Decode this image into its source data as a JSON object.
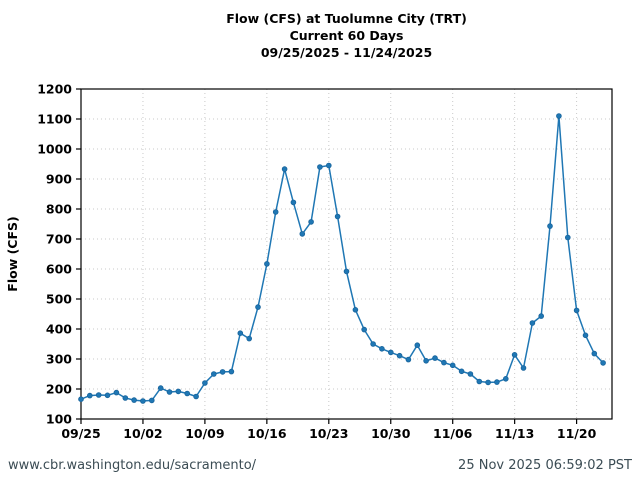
{
  "title": {
    "line1": "Flow (CFS) at Tuolumne City (TRT)",
    "line2": "Current 60 Days",
    "line3": "09/25/2025 - 11/24/2025"
  },
  "footer": {
    "url": "www.cbr.washington.edu/sacramento/",
    "timestamp": "25 Nov 2025 06:59:02 PST"
  },
  "colors": {
    "line": "#1f77b4",
    "marker": "#1f77b4",
    "grid": "#c9c9c9",
    "axis": "#000000",
    "footer_text": "#3b4c54"
  },
  "chart_data": {
    "type": "line",
    "title": "Flow (CFS) at Tuolumne City (TRT)",
    "subtitle": "Current 60 Days",
    "date_range": "09/25/2025 - 11/24/2025",
    "xlabel": "",
    "ylabel": "Flow (CFS)",
    "ylim": [
      100,
      1200
    ],
    "grid": true,
    "legend": "none",
    "yticks": [
      100,
      200,
      300,
      400,
      500,
      600,
      700,
      800,
      900,
      1000,
      1100,
      1200
    ],
    "xtick_days": [
      0,
      7,
      14,
      21,
      28,
      35,
      42,
      49,
      56
    ],
    "xtick_labels": [
      "09/25",
      "10/02",
      "10/09",
      "10/16",
      "10/23",
      "10/30",
      "11/06",
      "11/13",
      "11/20"
    ],
    "x_total_days": 60,
    "x": [
      "09/25",
      "09/26",
      "09/27",
      "09/28",
      "09/29",
      "09/30",
      "10/01",
      "10/02",
      "10/03",
      "10/04",
      "10/05",
      "10/06",
      "10/07",
      "10/08",
      "10/09",
      "10/10",
      "10/11",
      "10/12",
      "10/13",
      "10/14",
      "10/15",
      "10/16",
      "10/17",
      "10/18",
      "10/19",
      "10/20",
      "10/21",
      "10/22",
      "10/23",
      "10/24",
      "10/25",
      "10/26",
      "10/27",
      "10/28",
      "10/29",
      "10/30",
      "10/31",
      "11/01",
      "11/02",
      "11/03",
      "11/04",
      "11/05",
      "11/06",
      "11/07",
      "11/08",
      "11/09",
      "11/10",
      "11/11",
      "11/12",
      "11/13",
      "11/14",
      "11/15",
      "11/16",
      "11/17",
      "11/18",
      "11/19",
      "11/20",
      "11/21",
      "11/22",
      "11/23"
    ],
    "values": [
      166,
      178,
      180,
      179,
      188,
      170,
      163,
      160,
      162,
      203,
      190,
      192,
      185,
      175,
      220,
      250,
      257,
      258,
      386,
      368,
      473,
      617,
      790,
      933,
      822,
      717,
      757,
      940,
      945,
      775,
      592,
      464,
      398,
      350,
      334,
      322,
      311,
      298,
      346,
      294,
      303,
      288,
      279,
      259,
      250,
      225,
      222,
      223,
      234,
      314,
      270,
      420,
      443,
      743,
      1110,
      705,
      462,
      379,
      318,
      287
    ]
  }
}
